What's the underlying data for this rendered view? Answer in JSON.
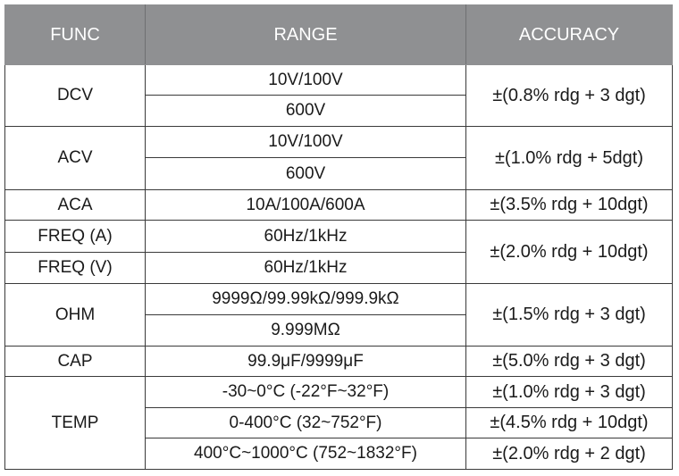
{
  "header": {
    "func": "FUNC",
    "range": "RANGE",
    "accuracy": "ACCURACY"
  },
  "colors": {
    "header_bg": "#8f9092",
    "header_text": "#ffffff",
    "border": "#3a3a3a"
  },
  "groups": [
    {
      "func": "DCV",
      "ranges": [
        "10V/100V",
        "600V"
      ],
      "accuracy": [
        "±(0.8% rdg + 3 dgt)"
      ]
    },
    {
      "func": "ACV",
      "ranges": [
        "10V/100V",
        "600V"
      ],
      "accuracy": [
        "±(1.0% rdg + 5dgt)"
      ]
    },
    {
      "func": "ACA",
      "ranges": [
        "10A/100A/600A"
      ],
      "accuracy": [
        "±(3.5% rdg + 10dgt)"
      ]
    },
    {
      "func": "FREQ (A)",
      "ranges": [
        "60Hz/1kHz"
      ],
      "accuracy": [
        "±(2.0% rdg + 10dgt)"
      ],
      "accuracy_rowspan": 2
    },
    {
      "func": "FREQ (V)",
      "ranges": [
        "60Hz/1kHz"
      ],
      "accuracy": []
    },
    {
      "func": "OHM",
      "ranges": [
        "9999Ω/99.99kΩ/999.9kΩ",
        "9.999MΩ"
      ],
      "accuracy": [
        "±(1.5% rdg + 3 dgt)"
      ]
    },
    {
      "func": "CAP",
      "ranges": [
        "99.9μF/9999μF"
      ],
      "accuracy": [
        "±(5.0% rdg + 3 dgt)"
      ]
    },
    {
      "func": "TEMP",
      "ranges": [
        "-30~0°C (-22°F~32°F)",
        "0-400°C (32~752°F)",
        "400°C~1000°C (752~1832°F)"
      ],
      "accuracy": [
        "±(1.0% rdg + 3 dgt)",
        "±(4.5% rdg + 10dgt)",
        "±(2.0% rdg + 2 dgt)"
      ]
    }
  ]
}
